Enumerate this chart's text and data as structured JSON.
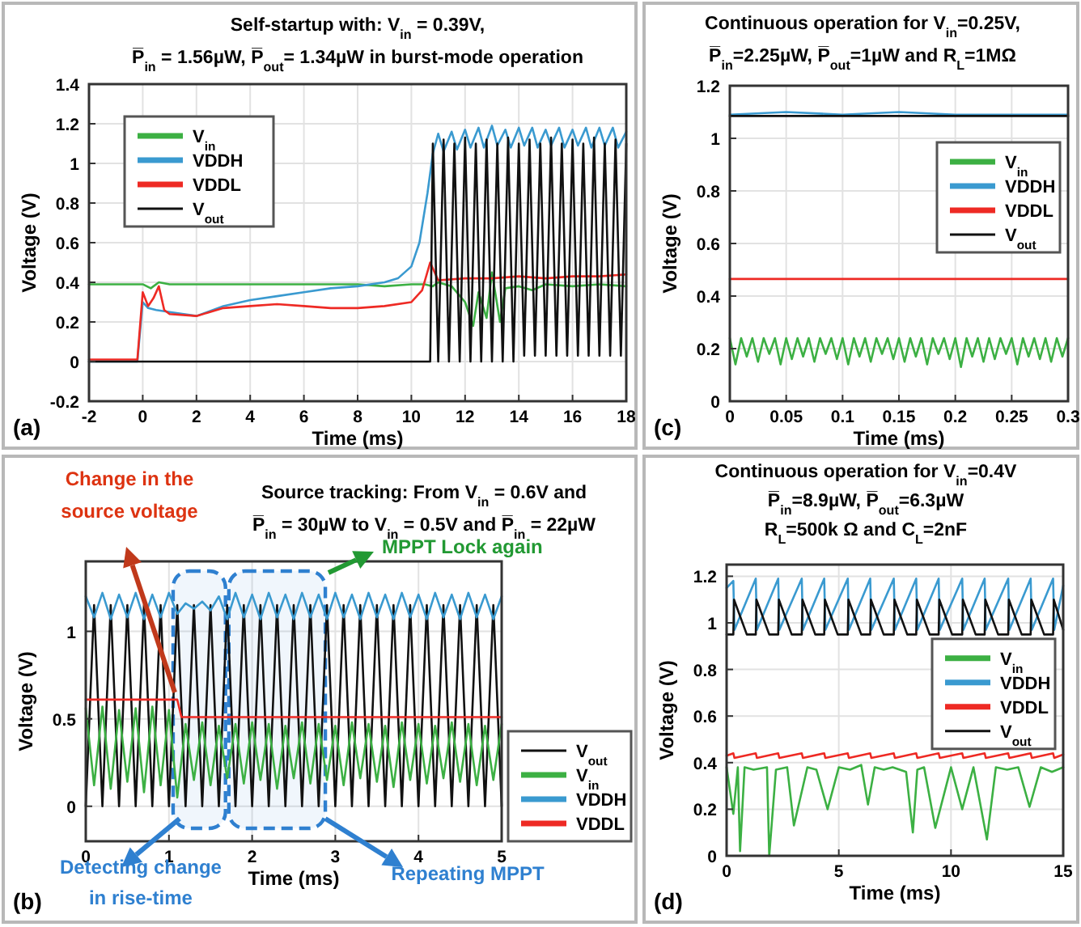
{
  "chart_data": [
    {
      "type": "line",
      "title": "Self-startup with: V$_{in}$ = 0.39V,",
      "subtitle": "P̅$_{in}$ = 1.56µW, P̅$_{out}$= 1.34µW in burst-mode operation",
      "xlabel": "Time (ms)",
      "ylabel": "Voltage (V)",
      "xlim": [
        -2,
        18
      ],
      "xticks": [
        -2,
        0,
        2,
        4,
        6,
        8,
        10,
        12,
        14,
        16,
        18
      ],
      "ylim": [
        -0.2,
        1.4
      ],
      "yticks": [
        -0.2,
        0,
        0.2,
        0.4,
        0.6,
        0.8,
        1,
        1.2,
        1.4
      ],
      "grid": true,
      "legend": "top left",
      "annotations": [
        "(a)"
      ],
      "series": [
        {
          "name": "V$_{in}$",
          "color": "#3cb043",
          "x": [
            -2,
            -1,
            0,
            0.3,
            0.6,
            1,
            2,
            4,
            6,
            8,
            9,
            10,
            10.5,
            10.8,
            11,
            11.5,
            12,
            12.3,
            12.5,
            12.8,
            13,
            13.3,
            13.5,
            14,
            14.5,
            15,
            16,
            17,
            18
          ],
          "values": [
            0.39,
            0.39,
            0.39,
            0.37,
            0.4,
            0.39,
            0.39,
            0.39,
            0.39,
            0.39,
            0.38,
            0.39,
            0.39,
            0.38,
            0.4,
            0.38,
            0.3,
            0.18,
            0.35,
            0.22,
            0.45,
            0.2,
            0.37,
            0.38,
            0.36,
            0.39,
            0.38,
            0.39,
            0.38
          ]
        },
        {
          "name": "VDDH",
          "color": "#3a9ad0",
          "x": [
            -2,
            -0.2,
            0,
            0.2,
            0.5,
            1,
            2,
            3,
            4,
            5,
            6,
            7,
            8,
            9,
            9.5,
            10,
            10.3,
            10.6,
            10.8,
            11,
            11.2,
            11.5,
            11.7,
            12,
            12.2,
            12.5,
            12.7,
            13,
            13.2,
            13.5,
            13.7,
            14,
            14.2,
            14.5,
            14.7,
            15,
            15.2,
            15.5,
            15.7,
            16,
            16.2,
            16.5,
            16.7,
            17,
            17.2,
            17.5,
            17.7,
            18
          ],
          "values": [
            0,
            0,
            0.3,
            0.27,
            0.26,
            0.25,
            0.23,
            0.28,
            0.31,
            0.33,
            0.35,
            0.37,
            0.38,
            0.4,
            0.42,
            0.48,
            0.6,
            0.85,
            1.05,
            1.15,
            1.06,
            1.16,
            1.07,
            1.17,
            1.08,
            1.18,
            1.08,
            1.19,
            1.09,
            1.17,
            1.08,
            1.18,
            1.09,
            1.18,
            1.08,
            1.17,
            1.09,
            1.18,
            1.08,
            1.17,
            1.09,
            1.18,
            1.08,
            1.18,
            1.09,
            1.18,
            1.08,
            1.16
          ]
        },
        {
          "name": "VDDL",
          "color": "#ee2a24",
          "x": [
            -2,
            -0.2,
            0,
            0.2,
            0.4,
            0.6,
            0.8,
            1,
            2,
            3,
            4,
            5,
            6,
            7,
            8,
            9,
            10,
            10.4,
            10.7,
            11,
            12,
            13,
            14,
            15,
            16,
            17,
            18
          ],
          "values": [
            0.01,
            0.01,
            0.35,
            0.28,
            0.32,
            0.38,
            0.26,
            0.24,
            0.23,
            0.27,
            0.28,
            0.29,
            0.28,
            0.27,
            0.27,
            0.28,
            0.3,
            0.36,
            0.5,
            0.41,
            0.42,
            0.42,
            0.43,
            0.42,
            0.43,
            0.43,
            0.44
          ]
        },
        {
          "name": "V$_{out}$",
          "color": "#111111",
          "x": [
            -2,
            10.7,
            10.8,
            11,
            11.2,
            11.4,
            11.6,
            11.8,
            12,
            12.2,
            12.4,
            12.6,
            12.8,
            13,
            13.2,
            13.4,
            13.6,
            13.8,
            14,
            14.2,
            14.4,
            14.6,
            14.8,
            15,
            15.2,
            15.4,
            15.6,
            15.8,
            16,
            16.2,
            16.4,
            16.6,
            16.8,
            17,
            17.2,
            17.4,
            17.6,
            17.8,
            18
          ],
          "values": [
            0,
            0,
            1.1,
            0,
            1.12,
            0,
            1.1,
            0,
            1.13,
            0,
            1.1,
            0,
            1.12,
            0,
            1.1,
            0,
            1.13,
            0,
            1.1,
            0.03,
            1.12,
            0.03,
            1.1,
            0.03,
            1.13,
            0.03,
            1.1,
            0.03,
            1.12,
            0.03,
            1.1,
            0.03,
            1.13,
            0.03,
            1.1,
            0.03,
            1.12,
            0.03,
            1.1
          ]
        }
      ]
    },
    {
      "type": "line",
      "title": "Continuous operation for V$_{in}$=0.25V,",
      "subtitle": "P̅$_{in}$=2.25µW, P̅$_{out}$=1µW and R$_{L}$=1MΩ",
      "xlabel": "Time (ms)",
      "ylabel": "Voltage (V)",
      "xlim": [
        0,
        0.3
      ],
      "xticks": [
        0,
        0.05,
        0.1,
        0.15,
        0.2,
        0.25,
        0.3
      ],
      "ylim": [
        0,
        1.2
      ],
      "yticks": [
        0,
        0.2,
        0.4,
        0.6,
        0.8,
        1,
        1.2
      ],
      "grid": true,
      "legend": "top right",
      "annotations": [
        "(c)"
      ],
      "series": [
        {
          "name": "V$_{in}$",
          "color": "#3cb043",
          "x": [
            0,
            0.005,
            0.01,
            0.015,
            0.02,
            0.025,
            0.03,
            0.035,
            0.04,
            0.045,
            0.05,
            0.055,
            0.06,
            0.065,
            0.07,
            0.075,
            0.08,
            0.085,
            0.09,
            0.095,
            0.1,
            0.105,
            0.11,
            0.115,
            0.12,
            0.125,
            0.13,
            0.135,
            0.14,
            0.145,
            0.15,
            0.155,
            0.16,
            0.165,
            0.17,
            0.175,
            0.18,
            0.185,
            0.19,
            0.195,
            0.2,
            0.205,
            0.21,
            0.215,
            0.22,
            0.225,
            0.23,
            0.235,
            0.24,
            0.245,
            0.25,
            0.255,
            0.26,
            0.265,
            0.27,
            0.275,
            0.28,
            0.285,
            0.29,
            0.295,
            0.3
          ],
          "values": [
            0.24,
            0.14,
            0.24,
            0.17,
            0.24,
            0.15,
            0.24,
            0.18,
            0.24,
            0.14,
            0.24,
            0.16,
            0.24,
            0.17,
            0.24,
            0.15,
            0.24,
            0.18,
            0.24,
            0.16,
            0.24,
            0.14,
            0.24,
            0.17,
            0.24,
            0.15,
            0.24,
            0.18,
            0.24,
            0.16,
            0.24,
            0.15,
            0.24,
            0.17,
            0.24,
            0.14,
            0.24,
            0.18,
            0.24,
            0.16,
            0.24,
            0.13,
            0.24,
            0.17,
            0.24,
            0.15,
            0.24,
            0.16,
            0.24,
            0.18,
            0.24,
            0.14,
            0.24,
            0.17,
            0.24,
            0.16,
            0.24,
            0.15,
            0.24,
            0.17,
            0.24
          ]
        },
        {
          "name": "VDDH",
          "color": "#3a9ad0",
          "x": [
            0,
            0.05,
            0.1,
            0.15,
            0.2,
            0.25,
            0.3
          ],
          "values": [
            1.09,
            1.1,
            1.09,
            1.1,
            1.09,
            1.09,
            1.09
          ]
        },
        {
          "name": "VDDL",
          "color": "#ee2a24",
          "x": [
            0,
            0.05,
            0.1,
            0.15,
            0.2,
            0.25,
            0.3
          ],
          "values": [
            0.465,
            0.465,
            0.465,
            0.465,
            0.465,
            0.465,
            0.465
          ]
        },
        {
          "name": "V$_{out}$",
          "color": "#111111",
          "x": [
            0,
            0.05,
            0.1,
            0.15,
            0.2,
            0.25,
            0.3
          ],
          "values": [
            1.085,
            1.085,
            1.085,
            1.085,
            1.085,
            1.085,
            1.085
          ]
        }
      ]
    },
    {
      "type": "line",
      "title": "Source tracking: From V$_{in}$ = 0.6V and",
      "subtitle": "P̅$_{in}$ = 30µW to V$_{in}$ = 0.5V and P̅$_{in}$ = 22µW",
      "xlabel": "Time (ms)",
      "ylabel": "Voltage (V)",
      "xlim": [
        0,
        5
      ],
      "xticks": [
        0,
        1,
        2,
        3,
        4,
        5
      ],
      "ylim": [
        -0.2,
        1.4
      ],
      "yticks": [
        0,
        0.5,
        1
      ],
      "grid": true,
      "legend": "bottom right",
      "annotations": [
        "Change in the source voltage",
        "MPPT Lock again",
        "(b)"
      ],
      "bands": [
        {
          "axis": "x",
          "from": 1.05,
          "to": 1.68,
          "label": "Detecting change in rise-time",
          "color": "#2f80d0"
        },
        {
          "axis": "x",
          "from": 1.72,
          "to": 2.88,
          "label": "Repeating MPPT",
          "color": "#2f80d0"
        }
      ],
      "x": [
        0,
        0.1,
        0.2,
        0.3,
        0.4,
        0.5,
        0.6,
        0.7,
        0.8,
        0.9,
        1,
        1.1,
        1.2,
        1.3,
        1.4,
        1.5,
        1.6,
        1.7,
        1.8,
        1.9,
        2,
        2.1,
        2.2,
        2.3,
        2.4,
        2.5,
        2.6,
        2.7,
        2.8,
        2.9,
        3,
        3.1,
        3.2,
        3.3,
        3.4,
        3.5,
        3.6,
        3.7,
        3.8,
        3.9,
        4,
        4.1,
        4.2,
        4.3,
        4.4,
        4.5,
        4.6,
        4.7,
        4.8,
        4.9,
        5
      ],
      "series": [
        {
          "name": "V$_{out}$",
          "color": "#111111",
          "values": [
            0,
            1.15,
            0,
            1.15,
            0,
            1.15,
            0,
            1.15,
            0,
            1.15,
            0,
            1.15,
            0,
            1.15,
            0,
            1.15,
            0,
            1.15,
            0,
            1.15,
            0,
            1.15,
            0,
            1.15,
            0,
            1.15,
            0,
            1.15,
            0,
            1.15,
            0,
            1.15,
            0,
            1.15,
            0,
            1.15,
            0,
            1.15,
            0,
            1.15,
            0,
            1.15,
            0,
            1.15,
            0,
            1.15,
            0,
            1.15,
            0,
            1.15,
            0
          ]
        },
        {
          "name": "V$_{in}$",
          "color": "#3cb043",
          "values": [
            0.56,
            0.12,
            0.57,
            0.1,
            0.55,
            0.14,
            0.56,
            0.08,
            0.57,
            0.12,
            0.55,
            0.05,
            0.47,
            0.15,
            0.48,
            0.12,
            0.46,
            0.16,
            0.47,
            0.13,
            0.48,
            0.15,
            0.47,
            0.1,
            0.46,
            0.16,
            0.48,
            0.13,
            0.47,
            0.15,
            0.46,
            0.12,
            0.48,
            0.16,
            0.47,
            0.14,
            0.46,
            0.11,
            0.48,
            0.15,
            0.47,
            0.13,
            0.46,
            0.16,
            0.48,
            0.14,
            0.47,
            0.12,
            0.46,
            0.15,
            0.47
          ]
        },
        {
          "name": "VDDH",
          "color": "#3a9ad0",
          "values": [
            1.2,
            1.08,
            1.22,
            1.07,
            1.21,
            1.08,
            1.22,
            1.07,
            1.21,
            1.08,
            1.22,
            1.1,
            1.16,
            1.13,
            1.17,
            1.12,
            1.2,
            1.07,
            1.22,
            1.08,
            1.21,
            1.07,
            1.22,
            1.08,
            1.21,
            1.07,
            1.22,
            1.08,
            1.21,
            1.07,
            1.22,
            1.08,
            1.21,
            1.07,
            1.22,
            1.08,
            1.21,
            1.07,
            1.22,
            1.08,
            1.21,
            1.07,
            1.22,
            1.08,
            1.21,
            1.07,
            1.22,
            1.08,
            1.21,
            1.07,
            1.2
          ]
        },
        {
          "name": "VDDL",
          "color": "#ee2a24",
          "x": [
            0,
            1.1,
            1.15,
            5
          ],
          "values": [
            0.61,
            0.61,
            0.51,
            0.51
          ]
        }
      ]
    },
    {
      "type": "line",
      "title": "Continuous operation for V$_{in}$=0.4V",
      "subtitle": "P̅$_{in}$=8.9µW, P̅$_{out}$=6.3µW\nR$_{L}$=500k Ω and C$_{L}$=2nF",
      "xlabel": "Time (ms)",
      "ylabel": "Voltage (V)",
      "xlim": [
        0,
        15
      ],
      "xticks": [
        0,
        5,
        10,
        15
      ],
      "ylim": [
        0,
        1.25
      ],
      "yticks": [
        0,
        0.2,
        0.4,
        0.6,
        0.8,
        1,
        1.2
      ],
      "grid": true,
      "legend": "right",
      "annotations": [
        "(d)"
      ],
      "series": [
        {
          "name": "V$_{in}$",
          "color": "#3cb043",
          "x": [
            0,
            0.3,
            0.5,
            0.6,
            0.8,
            1.2,
            1.8,
            1.9,
            2.2,
            2.7,
            3.0,
            3.6,
            4,
            4.5,
            5,
            5.5,
            6,
            6.3,
            6.6,
            7,
            7.4,
            8,
            8.3,
            8.5,
            8.8,
            9.3,
            10,
            10.5,
            11,
            11.6,
            12,
            12.5,
            13,
            13.5,
            14,
            14.5,
            15
          ],
          "values": [
            0.38,
            0.18,
            0.38,
            0.02,
            0.38,
            0.37,
            0.38,
            0,
            0.37,
            0.38,
            0.13,
            0.38,
            0.37,
            0.2,
            0.38,
            0.37,
            0.39,
            0.22,
            0.38,
            0.37,
            0.38,
            0.36,
            0.1,
            0.37,
            0.38,
            0.12,
            0.38,
            0.2,
            0.38,
            0.07,
            0.38,
            0.37,
            0.38,
            0.21,
            0.38,
            0.36,
            0.38
          ]
        },
        {
          "name": "VDDH",
          "color": "#3a9ad0",
          "x": [
            0,
            0.3,
            0.35,
            1.3,
            1.35,
            2.3,
            2.35,
            3.35,
            3.4,
            4.35,
            4.4,
            5.4,
            5.45,
            6.4,
            6.45,
            7.45,
            7.5,
            8.45,
            8.5,
            9.45,
            9.5,
            10.5,
            10.55,
            11.5,
            11.55,
            12.55,
            12.6,
            13.55,
            13.6,
            14.55,
            14.6,
            15
          ],
          "values": [
            1.15,
            1.18,
            0.97,
            1.19,
            0.97,
            1.19,
            0.97,
            1.19,
            0.97,
            1.19,
            0.97,
            1.19,
            0.97,
            1.19,
            0.97,
            1.19,
            0.97,
            1.19,
            0.97,
            1.19,
            0.97,
            1.19,
            0.97,
            1.19,
            0.97,
            1.19,
            0.97,
            1.19,
            0.97,
            1.19,
            0.97,
            1.16
          ]
        },
        {
          "name": "VDDL",
          "color": "#ee2a24",
          "x": [
            0,
            0.3,
            0.35,
            1.3,
            1.35,
            2.3,
            2.35,
            3.35,
            3.4,
            4.35,
            4.4,
            5.4,
            5.45,
            6.4,
            6.45,
            7.45,
            7.5,
            8.45,
            8.5,
            9.45,
            9.5,
            10.5,
            10.55,
            11.5,
            11.55,
            12.55,
            12.6,
            13.55,
            13.6,
            14.55,
            14.6,
            15
          ],
          "values": [
            0.43,
            0.44,
            0.42,
            0.44,
            0.42,
            0.44,
            0.42,
            0.44,
            0.42,
            0.44,
            0.42,
            0.44,
            0.42,
            0.44,
            0.42,
            0.44,
            0.42,
            0.44,
            0.42,
            0.44,
            0.42,
            0.44,
            0.42,
            0.44,
            0.42,
            0.44,
            0.42,
            0.44,
            0.42,
            0.44,
            0.42,
            0.435
          ]
        },
        {
          "name": "V$_{out}$",
          "color": "#111111",
          "x": [
            0,
            0.3,
            0.33,
            0.9,
            1.3,
            1.33,
            1.9,
            2.3,
            2.33,
            2.9,
            3.35,
            3.38,
            3.95,
            4.35,
            4.38,
            4.95,
            5.4,
            5.43,
            6.0,
            6.4,
            6.43,
            7.0,
            7.45,
            7.48,
            8.05,
            8.45,
            8.48,
            9.05,
            9.45,
            9.48,
            10.05,
            10.5,
            10.53,
            11.1,
            11.5,
            11.53,
            12.1,
            12.55,
            12.58,
            13.15,
            13.55,
            13.58,
            14.15,
            14.55,
            14.58,
            15
          ],
          "values": [
            0.95,
            0.95,
            1.1,
            0.95,
            0.95,
            1.1,
            0.95,
            0.95,
            1.1,
            0.95,
            0.95,
            1.1,
            0.95,
            0.95,
            1.1,
            0.95,
            0.95,
            1.1,
            0.95,
            0.95,
            1.1,
            0.95,
            0.95,
            1.1,
            0.95,
            0.95,
            1.1,
            0.95,
            0.95,
            1.1,
            0.95,
            0.95,
            1.1,
            0.95,
            0.95,
            1.1,
            0.95,
            0.95,
            1.1,
            0.95,
            0.95,
            1.1,
            0.95,
            0.95,
            1.1,
            0.97
          ]
        }
      ]
    }
  ]
}
